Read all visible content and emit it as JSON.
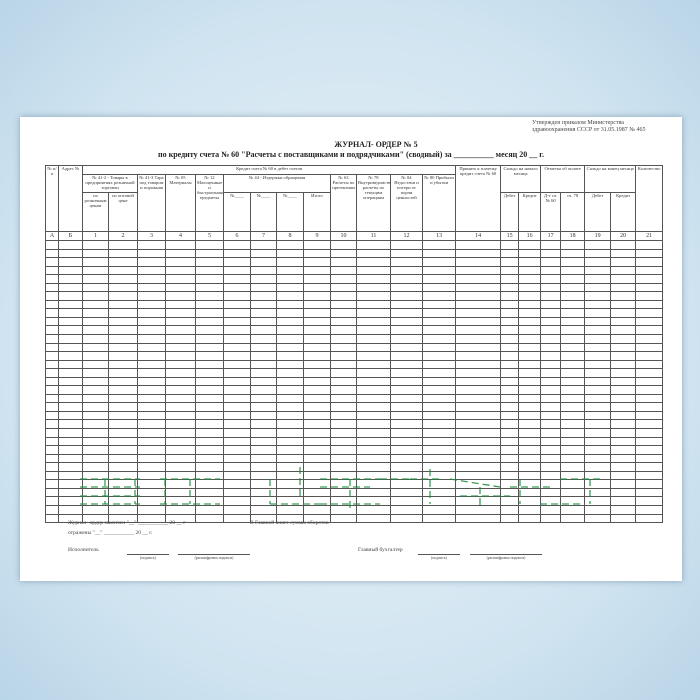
{
  "approval": {
    "line1": "Утвержден приказом Министерства",
    "line2": "здравоохранения СССР от 31.05.1987 № 465"
  },
  "title": {
    "line1": "ЖУРНАЛ- ОРДЕР № 5",
    "line2": "по кредиту счета № 60 \"Расчеты с поставщиками и подрядчиками\" (сводный) за __________ месяц 20 __ г."
  },
  "table": {
    "h_num": "№ п/п",
    "h_addr": "Адрес №",
    "h_credit": "Кредит счета № 60 в дебет счетов",
    "h_41_2": "№ 41-2 - Товары в предприятиях розничной торговли",
    "h_retail": "по розничным ценам",
    "h_wholesale": "по оптовой цене",
    "h_41_3": "№ 41-3 Тара под товаром и порожняя",
    "h_05": "№ 05 Материалы",
    "h_12": "№ 12 Малоценные и быстроизнашивающиеся предметы",
    "h_44": "№ 44 - Издержки обращения",
    "h_no": "№____",
    "h_total": "Итого",
    "h_63": "№ 63 Расчеты по претензиям",
    "h_78": "№ 78 Внутриведомственные расчеты по текущим операциям",
    "h_84": "№ 84 Недостачи и потери от порчи ценностей",
    "h_80": "№ 80 Прибыли и убытки",
    "h_accepted": "Принято к платежу кредит счета № 60",
    "h_bal_start": "Сальдо на начало месяца",
    "h_paid": "Отметка об оплате",
    "h_bal_end": "Сальдо на конец месяца",
    "h_debit": "Дебет",
    "h_credit2": "Кредит",
    "h_dt60": "Д-т сч. № 60",
    "h_78s": "сч. 78",
    "h_qty": "Количество",
    "col_numbers": [
      "А",
      "Б",
      "1",
      "2",
      "3",
      "4",
      "5",
      "6",
      "7",
      "8",
      "9",
      "10",
      "11",
      "12",
      "13",
      "14",
      "15",
      "16",
      "17",
      "18",
      "19",
      "20",
      "21"
    ]
  },
  "footer": {
    "closed": "Журнал- ордер закончен \"__\" ___________ 20 __ г",
    "ledger": "В Главной книге суммы оборотов",
    "reflected": "отражены \"__\" ___________ 20 __ г.",
    "executor": "Исполнитель",
    "chief": "Главный бухгалтер",
    "signature": "(подпись)",
    "decoding": "(расшифровка подписи)"
  },
  "watermark_color": "#1e8a3c"
}
